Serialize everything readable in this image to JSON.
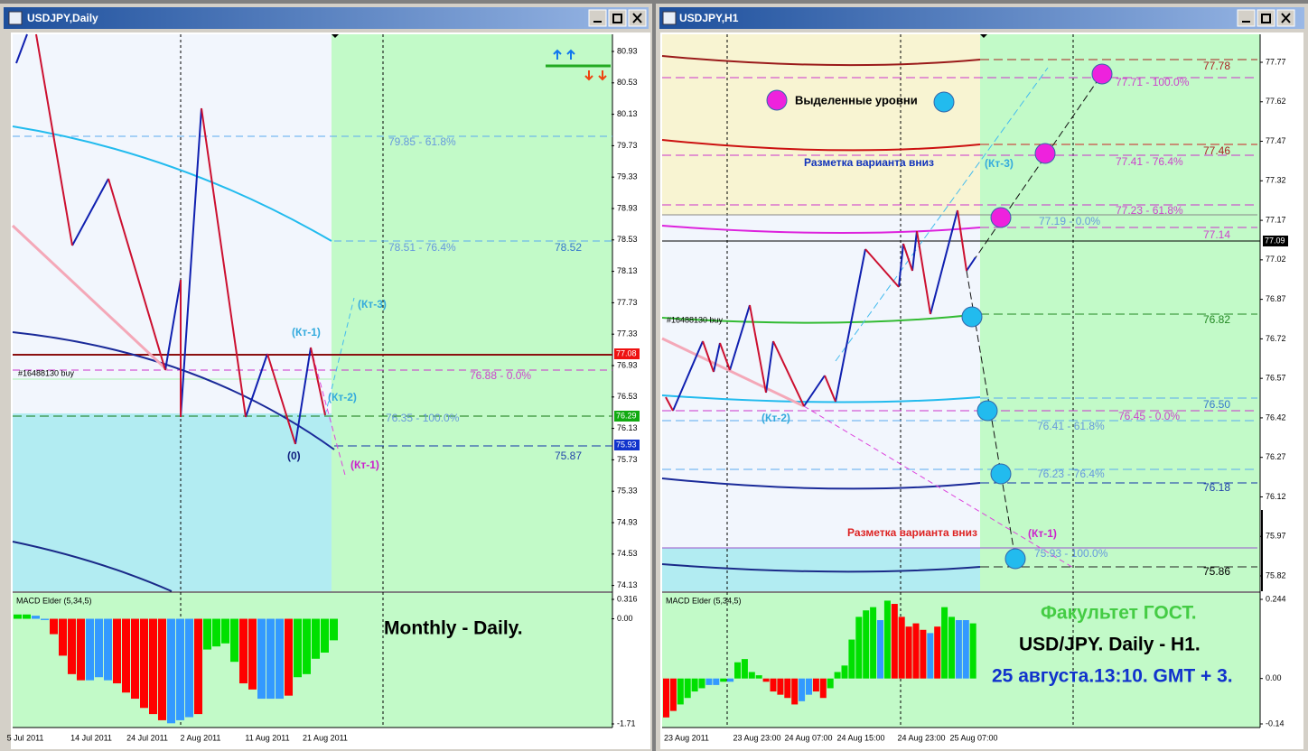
{
  "windows": [
    {
      "title": "USDJPY,Daily",
      "price_ticks": [
        "80.93",
        "80.53",
        "80.13",
        "79.73",
        "79.33",
        "78.93",
        "78.53",
        "78.13",
        "77.73",
        "77.33",
        "76.93",
        "76.53",
        "76.13",
        "75.73",
        "75.33",
        "74.93",
        "74.53",
        "74.13"
      ],
      "price_tags": [
        "77.08",
        "76.29",
        "75.93"
      ],
      "time_labels": [
        "5 Jul 2011",
        "14 Jul 2011",
        "24 Jul 2011",
        "2 Aug 2011",
        "11 Aug 2011",
        "21 Aug 2011"
      ],
      "annotations": [
        "79.85 - 61.8%",
        "78.51 - 76.4%",
        "78.52",
        "(Кт-3)",
        "(Кт-1)",
        "(Кт-2)",
        "76.88 - 0.0%",
        "#16488130 buy",
        "76.35 - 100.0%",
        "(0)",
        "75.87",
        "(Кт-1)"
      ],
      "caption": "Monthly - Daily.",
      "macd": {
        "title": "MACD Elder (5,34,5)",
        "ylim": [
          -1.71,
          0.316
        ],
        "ticks": [
          0.316,
          {
            "value": 0,
            "label": "0.00"
          },
          -1.71
        ],
        "values": [
          0.07,
          0.07,
          0.05,
          -0.02,
          -0.25,
          -0.6,
          -0.9,
          -1.0,
          -1.0,
          -0.95,
          -1.0,
          -1.05,
          -1.2,
          -1.3,
          -1.45,
          -1.55,
          -1.65,
          -1.7,
          -1.65,
          -1.6,
          -1.55,
          -0.5,
          -0.45,
          -0.4,
          -0.7,
          -1.05,
          -1.15,
          -1.3,
          -1.3,
          -1.3,
          -1.25,
          -0.95,
          -0.9,
          -0.65,
          -0.55,
          -0.35
        ],
        "colors": [
          "#00e000",
          "#00e000",
          "#3399ff",
          "#3399ff",
          "#ff0000",
          "#ff0000",
          "#ff0000",
          "#ff0000",
          "#3399ff",
          "#3399ff",
          "#3399ff",
          "#ff0000",
          "#ff0000",
          "#ff0000",
          "#ff0000",
          "#ff0000",
          "#ff0000",
          "#3399ff",
          "#3399ff",
          "#3399ff",
          "#ff0000",
          "#00e000",
          "#00e000",
          "#00e000",
          "#00e000",
          "#ff0000",
          "#ff0000",
          "#3399ff",
          "#3399ff",
          "#3399ff",
          "#ff0000",
          "#00e000",
          "#00e000",
          "#00e000",
          "#00e000",
          "#00e000"
        ]
      }
    },
    {
      "title": "USDJPY,H1",
      "price_ticks": [
        "77.77",
        "77.62",
        "77.47",
        "77.32",
        "77.17",
        "77.02",
        "76.87",
        "76.72",
        "76.57",
        "76.42",
        "76.27",
        "76.12",
        "75.97",
        "75.82"
      ],
      "price_tags": [
        "77.09"
      ],
      "time_labels": [
        "23 Aug 2011",
        "23 Aug 23:00",
        "24 Aug 07:00",
        "24 Aug 15:00",
        "24 Aug 23:00",
        "25 Aug 07:00"
      ],
      "annotations": [
        "Выделенные уровни",
        "Разметка варианта вниз",
        "(Кт-3)",
        "77.78",
        "77.71 - 100.0%",
        "77.46",
        "77.41 - 76.4%",
        "77.23 - 61.8%",
        "77.19 - 0.0%",
        "77.14",
        "#16488130 buy",
        "76.82",
        "(Кт-2)",
        "76.50",
        "76.45 - 0.0%",
        "76.41 - 61.8%",
        "76.23 - 76.4%",
        "76.18",
        "Разметка варианта вниз",
        "(Кт-1)",
        "75.93 - 100.0%",
        "75.86"
      ],
      "captions": [
        "Факультет ГОСТ.",
        "USD/JPY. Daily - H1.",
        "25 августа.13:10. GMT + 3."
      ],
      "macd": {
        "title": "MACD Elder (5,34,5)",
        "ylim": [
          -0.14,
          0.244
        ],
        "ticks": [
          0.244,
          {
            "value": 0,
            "label": "0.00"
          },
          -0.14
        ],
        "values": [
          -0.12,
          -0.1,
          -0.08,
          -0.06,
          -0.04,
          -0.03,
          -0.02,
          -0.02,
          -0.01,
          -0.01,
          0.05,
          0.06,
          0.02,
          0.01,
          -0.01,
          -0.04,
          -0.05,
          -0.06,
          -0.08,
          -0.07,
          -0.05,
          -0.04,
          -0.06,
          -0.03,
          0.02,
          0.04,
          0.12,
          0.19,
          0.21,
          0.22,
          0.18,
          0.24,
          0.23,
          0.19,
          0.16,
          0.17,
          0.15,
          0.14,
          0.16,
          0.22,
          0.19,
          0.18,
          0.18,
          0.17
        ],
        "colors": [
          "#ff0000",
          "#ff0000",
          "#00e000",
          "#00e000",
          "#00e000",
          "#00e000",
          "#3399ff",
          "#3399ff",
          "#00e000",
          "#3399ff",
          "#00e000",
          "#00e000",
          "#00e000",
          "#00e000",
          "#ff0000",
          "#ff0000",
          "#ff0000",
          "#ff0000",
          "#ff0000",
          "#3399ff",
          "#3399ff",
          "#ff0000",
          "#ff0000",
          "#00e000",
          "#00e000",
          "#00e000",
          "#00e000",
          "#00e000",
          "#00e000",
          "#00e000",
          "#3399ff",
          "#00e000",
          "#ff0000",
          "#ff0000",
          "#ff0000",
          "#ff0000",
          "#ff0000",
          "#3399ff",
          "#ff0000",
          "#00e000",
          "#00e000",
          "#3399ff",
          "#3399ff",
          "#00e000"
        ]
      }
    }
  ]
}
